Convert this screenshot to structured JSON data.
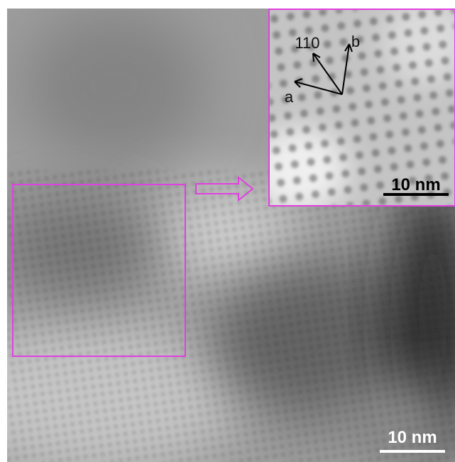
{
  "main": {
    "scale_bar": "10 nm"
  },
  "inset": {
    "labels": {
      "direction_110": "110",
      "a": "a",
      "b": "b"
    },
    "scale_bar": "10 nm"
  }
}
